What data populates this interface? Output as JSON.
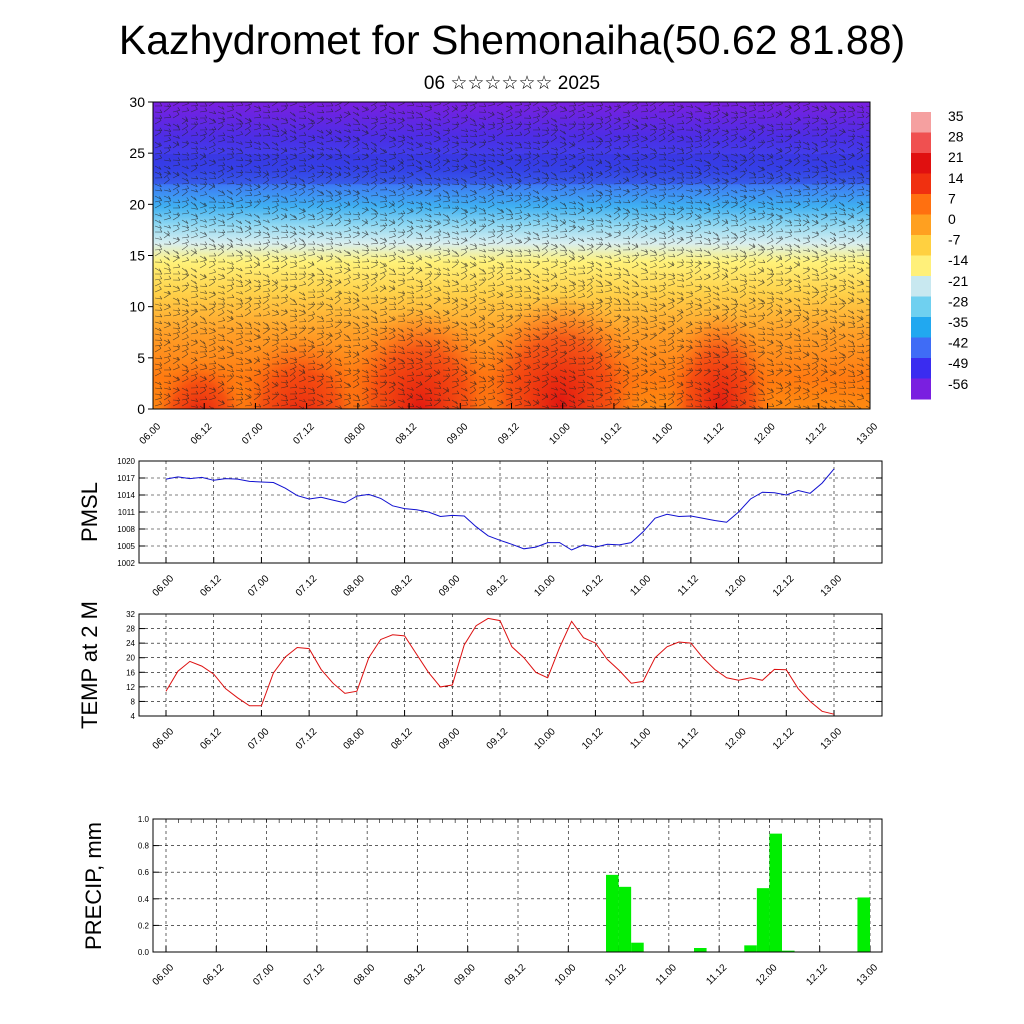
{
  "header": {
    "title": "Kazhydromet for Shemonaiha(50.62 81.88)",
    "subtitle": "06 ☆☆☆☆☆☆ 2025"
  },
  "colors": {
    "pmsl_line": "#1010d0",
    "temp_line": "#dd1010",
    "precip_bar": "#00ee00",
    "colorbar": [
      "#7a1fe0",
      "#3a2cf0",
      "#3f6cf6",
      "#21a8f0",
      "#6fd0f0",
      "#c8e8f0",
      "#fff07a",
      "#ffd040",
      "#ffa020",
      "#ff7010",
      "#f03010",
      "#e01010",
      "#f05050",
      "#f5a0a0"
    ]
  },
  "x_tick_labels": [
    "06.00",
    "06.12",
    "07.00",
    "07.12",
    "08.00",
    "08.12",
    "09.00",
    "09.12",
    "10.00",
    "10.12",
    "11.00",
    "11.12",
    "12.00",
    "12.12",
    "13.00"
  ],
  "chart_data": [
    {
      "type": "heatmap",
      "name": "cross_section",
      "ylim": [
        0,
        30
      ],
      "y_ticks": [
        0,
        5,
        10,
        15,
        20,
        25,
        30
      ],
      "colorbar_labels": [
        "35",
        "28",
        "21",
        "14",
        "7",
        "0",
        "-7",
        "-14",
        "-21",
        "-28",
        "-35",
        "-42",
        "-49",
        "-56"
      ],
      "colorbar_values": [
        35,
        28,
        21,
        14,
        7,
        0,
        -7,
        -14,
        -21,
        -28,
        -35,
        -42,
        -49,
        -56
      ]
    },
    {
      "type": "line",
      "name": "pmsl",
      "ylabel": "PMSL",
      "ylim": [
        1002,
        1020
      ],
      "y_ticks": [
        1002,
        1005,
        1008,
        1011,
        1014,
        1017,
        1020
      ],
      "x": [
        0,
        3,
        6,
        9,
        12,
        15,
        18,
        21,
        24,
        27,
        30,
        33,
        36,
        39,
        42,
        45,
        48,
        51,
        54,
        57,
        60,
        63,
        66,
        69,
        72,
        75,
        78,
        81,
        84,
        87,
        90,
        93,
        96,
        99,
        102,
        105,
        108,
        111,
        114,
        117,
        120,
        123,
        126,
        129,
        132,
        135,
        138,
        141,
        144,
        147,
        150,
        153,
        156,
        159,
        162,
        165,
        168
      ],
      "values": [
        1016.8,
        1017.2,
        1016.9,
        1017.1,
        1016.6,
        1016.9,
        1016.8,
        1016.4,
        1016.3,
        1016.2,
        1015.2,
        1013.9,
        1013.3,
        1013.6,
        1013.1,
        1012.6,
        1013.8,
        1014.1,
        1013.4,
        1012.1,
        1011.6,
        1011.4,
        1011.0,
        1010.2,
        1010.4,
        1010.3,
        1008.4,
        1006.8,
        1006.0,
        1005.3,
        1004.5,
        1004.8,
        1005.6,
        1005.6,
        1004.3,
        1005.2,
        1004.8,
        1005.3,
        1005.2,
        1005.6,
        1007.5,
        1009.9,
        1010.6,
        1010.2,
        1010.3,
        1009.9,
        1009.5,
        1009.2,
        1011.0,
        1013.3,
        1014.5,
        1014.4,
        1014.0,
        1014.8,
        1014.3,
        1016.1,
        1018.6
      ]
    },
    {
      "type": "line",
      "name": "temp2m",
      "ylabel": "TEMP at 2 M",
      "ylim": [
        4,
        32
      ],
      "y_ticks": [
        4,
        8,
        12,
        16,
        20,
        24,
        28,
        32
      ],
      "x": [
        0,
        3,
        6,
        9,
        12,
        15,
        18,
        21,
        24,
        27,
        30,
        33,
        36,
        39,
        42,
        45,
        48,
        51,
        54,
        57,
        60,
        63,
        66,
        69,
        72,
        75,
        78,
        81,
        84,
        87,
        90,
        93,
        96,
        99,
        102,
        105,
        108,
        111,
        114,
        117,
        120,
        123,
        126,
        129,
        132,
        135,
        138,
        141,
        144,
        147,
        150,
        153,
        156,
        159,
        162,
        165,
        168
      ],
      "values": [
        10.8,
        16.3,
        19.0,
        17.7,
        15.5,
        11.5,
        9.0,
        6.8,
        6.8,
        15.8,
        20.2,
        22.8,
        22.5,
        16.8,
        13.0,
        10.2,
        10.8,
        20.0,
        25.0,
        26.3,
        26.0,
        21.0,
        16.0,
        12.0,
        12.5,
        23.5,
        28.8,
        30.8,
        30.2,
        23.0,
        20.0,
        16.0,
        14.5,
        22.8,
        30.0,
        25.5,
        24.0,
        19.5,
        16.5,
        13.0,
        13.5,
        20.0,
        23.0,
        24.3,
        24.0,
        20.0,
        16.8,
        14.5,
        13.8,
        14.5,
        13.8,
        16.8,
        16.7,
        11.5,
        8.0,
        5.3,
        4.5
      ]
    },
    {
      "type": "bar",
      "name": "precip",
      "ylabel": "PRECIP, mm",
      "ylim": [
        0,
        1
      ],
      "y_ticks": [
        0.0,
        0.2,
        0.4,
        0.6,
        0.8,
        1.0
      ],
      "y_tick_labels": [
        "0.0",
        "0.2",
        "0.4",
        "0.6",
        "0.8",
        "1.0"
      ],
      "bar_width": 3,
      "x": [
        105,
        108,
        111,
        126,
        138,
        141,
        144,
        147,
        165
      ],
      "values": [
        0.58,
        0.49,
        0.07,
        0.03,
        0.05,
        0.48,
        0.89,
        0.01,
        0.41
      ]
    }
  ]
}
